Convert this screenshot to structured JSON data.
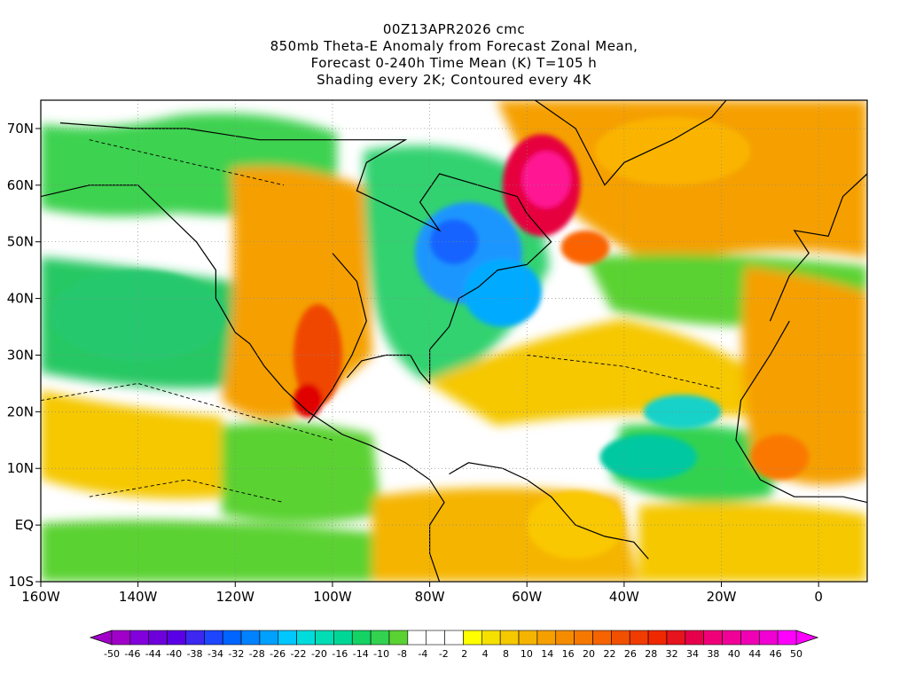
{
  "header": {
    "title_lines": [
      "00Z13APR2026 cmc",
      "850mb Theta-E Anomaly from Forecast Zonal Mean,",
      "Forecast 0-240h Time Mean (K) T=105 h",
      "Shading every 2K; Contoured every 4K"
    ]
  },
  "map": {
    "lon_min": -160,
    "lon_max": 10,
    "lat_min": -10,
    "lat_max": 75,
    "x_ticks": [
      {
        "lon": -160,
        "label": "160W"
      },
      {
        "lon": -140,
        "label": "140W"
      },
      {
        "lon": -120,
        "label": "120W"
      },
      {
        "lon": -100,
        "label": "100W"
      },
      {
        "lon": -80,
        "label": "80W"
      },
      {
        "lon": -60,
        "label": "60W"
      },
      {
        "lon": -40,
        "label": "40W"
      },
      {
        "lon": -20,
        "label": "20W"
      },
      {
        "lon": 0,
        "label": "0"
      }
    ],
    "y_ticks": [
      {
        "lat": 70,
        "label": "70N"
      },
      {
        "lat": 60,
        "label": "60N"
      },
      {
        "lat": 50,
        "label": "50N"
      },
      {
        "lat": 40,
        "label": "40N"
      },
      {
        "lat": 30,
        "label": "30N"
      },
      {
        "lat": 20,
        "label": "20N"
      },
      {
        "lat": 10,
        "label": "10N"
      },
      {
        "lat": 0,
        "label": "EQ"
      },
      {
        "lat": -10,
        "label": "10S"
      }
    ],
    "blobs": [
      {
        "lon": -72,
        "lat": 48,
        "rx": 11,
        "ry": 9,
        "color": "#1e96ff"
      },
      {
        "lon": -65,
        "lat": 41,
        "rx": 8,
        "ry": 6,
        "color": "#00aaff"
      },
      {
        "lon": -75,
        "lat": 50,
        "rx": 5,
        "ry": 4,
        "color": "#1464ff"
      },
      {
        "lon": -57,
        "lat": 60,
        "rx": 8,
        "ry": 9,
        "color": "#e6003c"
      },
      {
        "lon": -56,
        "lat": 61,
        "rx": 5,
        "ry": 5,
        "color": "#ff1493"
      },
      {
        "lon": -48,
        "lat": 49,
        "rx": 5,
        "ry": 3,
        "color": "#fa6400"
      },
      {
        "lon": -103,
        "lat": 30,
        "rx": 5,
        "ry": 9,
        "color": "#f04600"
      },
      {
        "lon": -105,
        "lat": 22,
        "rx": 3,
        "ry": 3,
        "color": "#e00000"
      },
      {
        "lon": -140,
        "lat": 37,
        "rx": 18,
        "ry": 8,
        "color": "#28c86e"
      },
      {
        "lon": -35,
        "lat": 12,
        "rx": 10,
        "ry": 4,
        "color": "#00c8a0"
      },
      {
        "lon": -28,
        "lat": 20,
        "rx": 8,
        "ry": 3,
        "color": "#14d2c8"
      },
      {
        "lon": -30,
        "lat": 66,
        "rx": 16,
        "ry": 6,
        "color": "#fab400"
      },
      {
        "lon": -8,
        "lat": 12,
        "rx": 6,
        "ry": 4,
        "color": "#fa7800"
      },
      {
        "lon": -50,
        "lat": 0,
        "rx": 10,
        "ry": 6,
        "color": "#fac800"
      }
    ],
    "lines": [
      {
        "pts": [
          [
            -100,
            48
          ],
          [
            -95,
            43
          ],
          [
            -93,
            36
          ],
          [
            -96,
            30
          ],
          [
            -100,
            24
          ],
          [
            -105,
            18
          ]
        ]
      },
      {
        "pts": [
          [
            -160,
            58
          ],
          [
            -150,
            60
          ],
          [
            -140,
            60
          ],
          [
            -134,
            55
          ],
          [
            -128,
            50
          ],
          [
            -124,
            45
          ],
          [
            -124,
            40
          ],
          [
            -120,
            34
          ],
          [
            -117,
            32
          ],
          [
            -114,
            28
          ],
          [
            -110,
            24
          ],
          [
            -105,
            20
          ],
          [
            -98,
            16
          ],
          [
            -92,
            14
          ],
          [
            -85,
            11
          ],
          [
            -80,
            8
          ],
          [
            -77,
            4
          ],
          [
            -80,
            0
          ],
          [
            -80,
            -5
          ],
          [
            -78,
            -10
          ]
        ]
      },
      {
        "pts": [
          [
            -97,
            26
          ],
          [
            -94,
            29
          ],
          [
            -89,
            30
          ],
          [
            -84,
            30
          ],
          [
            -82,
            27
          ],
          [
            -80,
            25
          ],
          [
            -80,
            31
          ],
          [
            -76,
            35
          ],
          [
            -74,
            40
          ],
          [
            -70,
            42
          ],
          [
            -66,
            45
          ],
          [
            -60,
            46
          ],
          [
            -55,
            50
          ],
          [
            -60,
            55
          ],
          [
            -62,
            58
          ],
          [
            -70,
            60
          ],
          [
            -78,
            62
          ],
          [
            -82,
            57
          ],
          [
            -78,
            52
          ],
          [
            -85,
            55
          ],
          [
            -95,
            59
          ],
          [
            -93,
            64
          ],
          [
            -85,
            68
          ],
          [
            -100,
            68
          ],
          [
            -115,
            68
          ],
          [
            -130,
            70
          ],
          [
            -141,
            70
          ],
          [
            -156,
            71
          ]
        ]
      },
      {
        "pts": [
          [
            -73,
            78
          ],
          [
            -60,
            76
          ],
          [
            -50,
            70
          ],
          [
            -44,
            60
          ],
          [
            -40,
            64
          ],
          [
            -30,
            68
          ],
          [
            -22,
            72
          ],
          [
            -18,
            76
          ]
        ]
      },
      {
        "pts": [
          [
            -10,
            36
          ],
          [
            -6,
            44
          ],
          [
            -2,
            48
          ],
          [
            -5,
            52
          ],
          [
            2,
            51
          ],
          [
            5,
            58
          ],
          [
            10,
            62
          ]
        ]
      },
      {
        "pts": [
          [
            -6,
            36
          ],
          [
            -10,
            30
          ],
          [
            -16,
            22
          ],
          [
            -17,
            15
          ],
          [
            -12,
            8
          ],
          [
            -5,
            5
          ],
          [
            5,
            5
          ],
          [
            10,
            4
          ]
        ]
      },
      {
        "pts": [
          [
            -35,
            -6
          ],
          [
            -38,
            -3
          ],
          [
            -44,
            -2
          ],
          [
            -50,
            0
          ],
          [
            -55,
            5
          ],
          [
            -60,
            8
          ],
          [
            -65,
            10
          ],
          [
            -72,
            11
          ],
          [
            -76,
            9
          ]
        ]
      }
    ],
    "dashed_lines": [
      {
        "pts": [
          [
            -160,
            22
          ],
          [
            -140,
            25
          ],
          [
            -120,
            20
          ],
          [
            -100,
            15
          ]
        ]
      },
      {
        "pts": [
          [
            -150,
            68
          ],
          [
            -130,
            64
          ],
          [
            -110,
            60
          ]
        ]
      },
      {
        "pts": [
          [
            -60,
            30
          ],
          [
            -40,
            28
          ],
          [
            -20,
            24
          ]
        ]
      },
      {
        "pts": [
          [
            -150,
            5
          ],
          [
            -130,
            8
          ],
          [
            -110,
            4
          ]
        ]
      }
    ]
  },
  "colorbar": {
    "colors": [
      "#a000c8",
      "#8200dc",
      "#6e00dc",
      "#5a00e6",
      "#3c28f0",
      "#1e46ff",
      "#0064ff",
      "#0082ff",
      "#00a0ff",
      "#00c8ff",
      "#00dcdc",
      "#00dcb4",
      "#00d796",
      "#14d264",
      "#32d250",
      "#5ad232",
      "#ffffff",
      "#ffffff",
      "#ffffff",
      "#ffff00",
      "#f5e100",
      "#f5c800",
      "#f5b400",
      "#f5a000",
      "#f58c00",
      "#f57800",
      "#f56400",
      "#f05000",
      "#f03c00",
      "#f02800",
      "#e6141e",
      "#e6004b",
      "#f00078",
      "#f00096",
      "#f000b4",
      "#f000d2",
      "#ff00ff"
    ],
    "labels": [
      "-50",
      "-46",
      "-44",
      "-40",
      "-38",
      "-34",
      "-32",
      "-28",
      "-26",
      "-22",
      "-20",
      "-16",
      "-14",
      "-10",
      "-8",
      "-4",
      "-2",
      "2",
      "4",
      "8",
      "10",
      "14",
      "16",
      "20",
      "22",
      "26",
      "28",
      "32",
      "34",
      "38",
      "40",
      "44",
      "46",
      "50"
    ]
  }
}
